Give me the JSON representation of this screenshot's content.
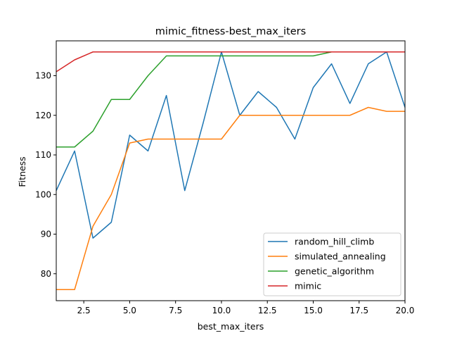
{
  "chart_data": {
    "type": "line",
    "title": "mimic_fitness-best_max_iters",
    "xlabel": "best_max_iters",
    "ylabel": "Fitness",
    "xlim": [
      1,
      20
    ],
    "ylim": [
      73.2,
      138.8
    ],
    "xticks": [
      2.5,
      5.0,
      7.5,
      10.0,
      12.5,
      15.0,
      17.5,
      20.0
    ],
    "xtick_labels": [
      "2.5",
      "5.0",
      "7.5",
      "10.0",
      "12.5",
      "15.0",
      "17.5",
      "20.0"
    ],
    "yticks": [
      80,
      90,
      100,
      110,
      120,
      130
    ],
    "ytick_labels": [
      "80",
      "90",
      "100",
      "110",
      "120",
      "130"
    ],
    "grid": false,
    "legend_position": "lower-right",
    "x": [
      1,
      2,
      3,
      4,
      5,
      6,
      7,
      8,
      9,
      10,
      11,
      12,
      13,
      14,
      15,
      16,
      17,
      18,
      19,
      20
    ],
    "series": [
      {
        "name": "random_hill_climb",
        "color": "#1f77b4",
        "values": [
          101,
          111,
          89,
          93,
          115,
          111,
          125,
          101,
          118,
          136,
          120,
          126,
          122,
          114,
          127,
          133,
          123,
          133,
          136,
          122
        ]
      },
      {
        "name": "simulated_annealing",
        "color": "#ff7f0e",
        "values": [
          76,
          76,
          92,
          100,
          113,
          114,
          114,
          114,
          114,
          114,
          120,
          120,
          120,
          120,
          120,
          120,
          120,
          122,
          121,
          121
        ]
      },
      {
        "name": "genetic_algorithm",
        "color": "#2ca02c",
        "values": [
          112,
          112,
          116,
          124,
          124,
          130,
          135,
          135,
          135,
          135,
          135,
          135,
          135,
          135,
          135,
          136,
          136,
          136,
          136,
          136
        ]
      },
      {
        "name": "mimic",
        "color": "#d62728",
        "values": [
          131,
          134,
          136,
          136,
          136,
          136,
          136,
          136,
          136,
          136,
          136,
          136,
          136,
          136,
          136,
          136,
          136,
          136,
          136,
          136
        ]
      }
    ]
  }
}
